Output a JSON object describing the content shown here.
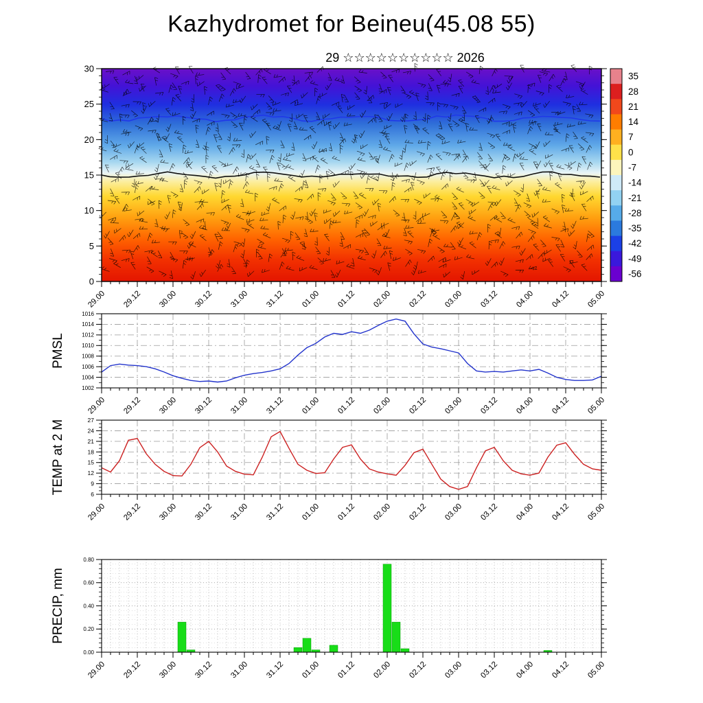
{
  "title": "Kazhydromet for Beineu(45.08 55)",
  "subtitle": "29 ☆☆☆☆☆☆☆☆☆☆ 2026",
  "time_labels": [
    "29.00",
    "29.12",
    "30.00",
    "30.12",
    "31.00",
    "31.12",
    "01.00",
    "01.12",
    "02.00",
    "02.12",
    "03.00",
    "03.12",
    "04.00",
    "04.12",
    "05.00"
  ],
  "chart_data": [
    {
      "type": "heatmap",
      "name": "temperature-cross-section",
      "description": "time-height temperature field with wind barbs",
      "ylim": [
        0,
        30
      ],
      "yticks": [
        0,
        5,
        10,
        15,
        20,
        25,
        30
      ],
      "x_step_hours": 3,
      "overlay": "wind-barbs",
      "zero_line_level": 15,
      "gradient_stops": [
        {
          "pos": 0.0,
          "color": "#6a10c8"
        },
        {
          "pos": 0.08,
          "color": "#4412d6"
        },
        {
          "pos": 0.17,
          "color": "#1f2fe0"
        },
        {
          "pos": 0.26,
          "color": "#2f6fd8"
        },
        {
          "pos": 0.36,
          "color": "#5fa8e8"
        },
        {
          "pos": 0.44,
          "color": "#a8d8f0"
        },
        {
          "pos": 0.49,
          "color": "#e9f4f6"
        },
        {
          "pos": 0.53,
          "color": "#fceea0"
        },
        {
          "pos": 0.6,
          "color": "#ffd830"
        },
        {
          "pos": 0.7,
          "color": "#ffa010"
        },
        {
          "pos": 0.8,
          "color": "#ff6400"
        },
        {
          "pos": 0.9,
          "color": "#f23000"
        },
        {
          "pos": 1.0,
          "color": "#e31500"
        }
      ],
      "colorbar": {
        "ticks": [
          35,
          28,
          21,
          14,
          7,
          0,
          -7,
          -14,
          -21,
          -28,
          -35,
          -42,
          -49,
          -56
        ],
        "colors": [
          "#e8828c",
          "#dc1f1f",
          "#f1481c",
          "#ff7d00",
          "#ffb020",
          "#ffe14a",
          "#fdf5bc",
          "#cfeaf8",
          "#92d2f2",
          "#56abe9",
          "#2b7ade",
          "#1b40e6",
          "#3a18dc",
          "#6a00d0"
        ]
      }
    },
    {
      "type": "line",
      "name": "pmsl",
      "ylabel": "PMSL",
      "color": "#2233cc",
      "ylim": [
        1002,
        1016
      ],
      "yticks": [
        1002,
        1004,
        1006,
        1008,
        1010,
        1012,
        1014,
        1016
      ],
      "x_step_hours": 3,
      "values": [
        1005.0,
        1006.2,
        1006.5,
        1006.3,
        1006.2,
        1006.0,
        1005.6,
        1005.0,
        1004.3,
        1003.8,
        1003.4,
        1003.2,
        1003.3,
        1003.1,
        1003.3,
        1003.9,
        1004.4,
        1004.7,
        1004.9,
        1005.2,
        1005.6,
        1006.6,
        1008.2,
        1009.6,
        1010.4,
        1011.6,
        1012.3,
        1012.1,
        1012.6,
        1012.3,
        1012.9,
        1013.8,
        1014.6,
        1015.0,
        1014.6,
        1012.2,
        1010.3,
        1009.7,
        1009.4,
        1009.0,
        1008.6,
        1006.6,
        1005.2,
        1005.0,
        1005.1,
        1005.0,
        1005.2,
        1005.4,
        1005.2,
        1005.5,
        1004.8,
        1004.0,
        1003.6,
        1003.4,
        1003.4,
        1003.5,
        1004.2
      ]
    },
    {
      "type": "line",
      "name": "temp-2m",
      "ylabel": "TEMP at 2 M",
      "color": "#cc2020",
      "ylim": [
        6,
        27
      ],
      "yticks": [
        6,
        9,
        12,
        15,
        18,
        21,
        24,
        27
      ],
      "x_step_hours": 3,
      "values": [
        13.5,
        12.3,
        15.5,
        21.3,
        21.8,
        17.5,
        14.5,
        12.5,
        11.3,
        11.2,
        14.5,
        19.2,
        21.0,
        18.0,
        14.0,
        12.5,
        11.7,
        11.5,
        16.5,
        22.3,
        23.8,
        19.0,
        14.5,
        12.8,
        11.9,
        12.1,
        16.0,
        19.3,
        20.0,
        16.0,
        13.2,
        12.3,
        11.8,
        11.4,
        14.2,
        17.8,
        18.8,
        14.5,
        10.3,
        8.2,
        7.4,
        8.2,
        13.5,
        18.3,
        19.3,
        15.5,
        12.8,
        11.8,
        11.4,
        12.0,
        16.5,
        19.9,
        20.6,
        17.3,
        14.5,
        13.2,
        12.8
      ]
    },
    {
      "type": "bar",
      "name": "precip",
      "ylabel": "PRECIP, mm",
      "color": "#18dd18",
      "ylim": [
        0,
        0.8
      ],
      "yticks": [
        0.0,
        0.2,
        0.4,
        0.6,
        0.8
      ],
      "ytick_labels": [
        "0.00",
        "0.20",
        "0.40",
        "0.60",
        "0.80"
      ],
      "x_step_hours": 3,
      "values": [
        0,
        0,
        0,
        0,
        0,
        0,
        0,
        0,
        0,
        0.26,
        0.02,
        0,
        0,
        0,
        0,
        0,
        0,
        0,
        0,
        0,
        0,
        0,
        0.04,
        0.12,
        0.02,
        0,
        0.06,
        0,
        0,
        0,
        0,
        0,
        0.76,
        0.26,
        0.03,
        0,
        0,
        0,
        0,
        0,
        0,
        0,
        0,
        0,
        0,
        0,
        0,
        0,
        0,
        0,
        0.015,
        0,
        0,
        0,
        0,
        0,
        0
      ]
    }
  ]
}
